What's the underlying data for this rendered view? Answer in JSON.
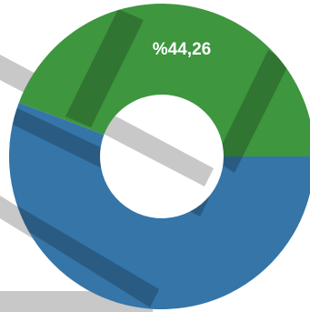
{
  "chart_data": {
    "type": "pie",
    "style": "donut",
    "title": "",
    "slices": [
      {
        "value": 55.74,
        "color": "#3575a8",
        "label": ""
      },
      {
        "value": 44.26,
        "color": "#3e963f",
        "label": "%44,26"
      }
    ],
    "legend": "none",
    "grid": false
  },
  "colors": {
    "stripe": "#000000",
    "stripe_bg": "#c8c8c8"
  }
}
